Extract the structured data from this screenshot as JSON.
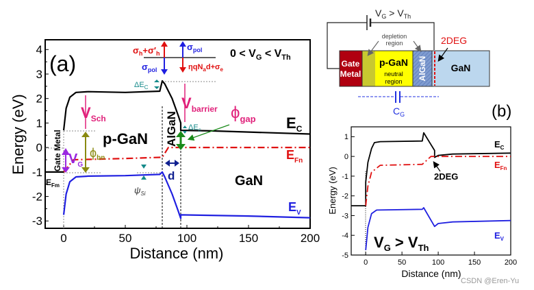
{
  "colors": {
    "ec": "#000000",
    "ev": "#1f1fe0",
    "efn": "#e01010",
    "pink": "#e0207a",
    "teal": "#158a8a",
    "olive": "#8a8a10",
    "purple": "#9a28e0",
    "green": "#1a8a1a",
    "gate": "#b00010",
    "pgan": "#ffff00",
    "depl": "#c8c830",
    "algan": "#7f9cd0",
    "gan": "#bcd7ee",
    "cg": "#2030e0"
  },
  "chart_data": [
    {
      "type": "line",
      "panel_label": "(a)",
      "xlabel": "Distance (nm)",
      "ylabel": "Energy (eV)",
      "xlim": [
        -15,
        200
      ],
      "ylim": [
        -3.3,
        4.4
      ],
      "xticks": [
        "0",
        "50",
        "100",
        "150",
        "200"
      ],
      "yticks": [
        "-3",
        "-2",
        "-1",
        "0",
        "1",
        "2",
        "3",
        "4"
      ],
      "grid": false,
      "condition": {
        "main1": "0 < V",
        "sub1": "G",
        "main2": " < V",
        "sub2": "Th"
      },
      "series": [
        {
          "name": "Ec",
          "label": "E",
          "sub": "C",
          "color": "#000000",
          "style": "solid",
          "x": [
            0,
            2,
            5,
            10,
            20,
            50,
            78,
            80,
            82,
            88,
            93,
            95,
            95,
            120,
            150,
            200
          ],
          "y": [
            0.7,
            1.6,
            2.05,
            2.25,
            2.28,
            2.25,
            2.3,
            2.72,
            2.6,
            2.0,
            1.3,
            1.0,
            0.7,
            0.68,
            0.63,
            0.55
          ]
        },
        {
          "name": "EFn",
          "label": "E",
          "sub": "Fn",
          "color": "#e01010",
          "style": "dashdot",
          "x": [
            0,
            8,
            50,
            80,
            85,
            200
          ],
          "y": [
            -1.0,
            -0.5,
            -0.45,
            -0.4,
            0,
            0
          ]
        },
        {
          "name": "Ev",
          "label": "E",
          "sub": "V",
          "color": "#1f1fe0",
          "style": "solid",
          "x": [
            0,
            2,
            5,
            10,
            20,
            50,
            78,
            80,
            82,
            88,
            93,
            95,
            95,
            150,
            200
          ],
          "y": [
            -2.75,
            -1.9,
            -1.4,
            -1.2,
            -1.17,
            -1.15,
            -1.1,
            -1.0,
            -1.2,
            -1.9,
            -2.6,
            -2.9,
            -2.75,
            -2.8,
            -2.87
          ]
        },
        {
          "name": "EFm",
          "label": "E",
          "sub": "Fm",
          "color": "#000000",
          "style": "solid",
          "x": [
            -15,
            0
          ],
          "y": [
            -1,
            -1
          ]
        }
      ],
      "annotations": {
        "sigma_h": {
          "main": "σ",
          "sub": "h",
          "main2": "+σ′",
          "sub2": "h"
        },
        "sigma_pol_left": {
          "main": "σ",
          "sub": "pol"
        },
        "sigma_pol_right": {
          "main": "σ",
          "sub": "pol"
        },
        "eta": {
          "main": "ηqN",
          "sub": "a",
          "main2": "d+σ",
          "sub2": "e"
        },
        "delta_ec_top": {
          "main": "ΔE",
          "sub": "C"
        },
        "delta_ec_bottom": {
          "main": "ΔE",
          "sub": "c"
        },
        "v_sch": {
          "main": "V",
          "sub": "Sch"
        },
        "v_barrier": {
          "main": "V",
          "sub": "barrier"
        },
        "phi_gap": {
          "main": "ϕ",
          "sub": "gap"
        },
        "phi_bn": {
          "main": "ϕ",
          "sub": "bn"
        },
        "v_g": {
          "main": "V",
          "sub": "G"
        },
        "psi_si": {
          "main": "ψ",
          "sub": "Si"
        },
        "p_gan": "p-GaN",
        "algan": "AlGaN",
        "gate_metal": "Gate Metal",
        "gan": "GaN",
        "d": "d"
      }
    },
    {
      "type": "line",
      "panel_label": "(b)",
      "xlabel": "Distance (nm)",
      "ylabel": "Energy (eV)",
      "xlim": [
        -20,
        200
      ],
      "ylim": [
        -5,
        1.5
      ],
      "xticks": [
        "0",
        "50",
        "100",
        "150",
        "200"
      ],
      "yticks": [
        "-5",
        "-4",
        "-3",
        "-2",
        "-1",
        "0",
        "1"
      ],
      "grid": false,
      "condition": {
        "main1": "V",
        "sub1": "G",
        "main2": " > V",
        "sub2": "Th"
      },
      "series": [
        {
          "name": "Ec",
          "label": "E",
          "sub": "C",
          "color": "#000000",
          "style": "solid",
          "x": [
            -20,
            0,
            0,
            3,
            8,
            12,
            20,
            78,
            80,
            85,
            95,
            95,
            100,
            120,
            200
          ],
          "y": [
            -2.5,
            -2.5,
            -1.3,
            -0.3,
            0.4,
            0.7,
            0.75,
            0.78,
            1.2,
            0.9,
            0.3,
            -0.05,
            0.05,
            0.12,
            0.17
          ]
        },
        {
          "name": "EFn",
          "label": "E",
          "sub": "Fn",
          "color": "#e01010",
          "style": "dashdot",
          "x": [
            0,
            3,
            8,
            20,
            78,
            90,
            200
          ],
          "y": [
            -2.5,
            -1.5,
            -0.8,
            -0.45,
            -0.4,
            0,
            0
          ]
        },
        {
          "name": "Ev",
          "label": "E",
          "sub": "V",
          "color": "#1f1fe0",
          "style": "solid",
          "x": [
            0,
            3,
            8,
            15,
            78,
            80,
            95,
            100,
            120,
            200
          ],
          "y": [
            -4.75,
            -3.6,
            -2.9,
            -2.72,
            -2.68,
            -2.6,
            -3.55,
            -3.4,
            -3.32,
            -3.25
          ]
        }
      ],
      "annotations": {
        "two_deg": "2DEG"
      }
    }
  ],
  "structure": {
    "bias": {
      "main1": "V",
      "sub1": "G",
      "main2": " > V",
      "sub2": "Th"
    },
    "depletion_line1": "depletion",
    "depletion_line2": "region",
    "two_deg": "2DEG",
    "gate_line1": "Gate",
    "gate_line2": "Metal",
    "pgan": "p-GaN",
    "neutral_line1": "neutral",
    "neutral_line2": "region",
    "algan": "AlGaN",
    "gan": "GaN",
    "cg": {
      "main": "C",
      "sub": "G"
    }
  },
  "watermark": "CSDN @Eren-Yu"
}
